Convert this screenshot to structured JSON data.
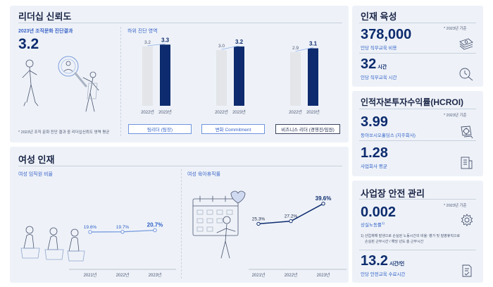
{
  "leadership": {
    "title": "리더십 신뢰도",
    "survey_label": "2023년 조직문화 진단결과",
    "score": "3.2",
    "footnote": "* 2023년 조직 문화 진단 결과 중 리더십신뢰도 영역 평균",
    "lower_title": "하위 진단 영역"
  },
  "women": {
    "title": "여성 인재",
    "ratio_label": "여성 임직원 비율",
    "leave_label": "여성 육아휴직률"
  },
  "talent": {
    "title": "인재 육성",
    "basis": "* 2023년 기준",
    "cost_value": "378,000",
    "cost_label": "인당 직무교육 비용",
    "hours_value": "32",
    "hours_unit": "시간",
    "hours_label": "인당 직무교육 시간"
  },
  "hcroi": {
    "title": "인적자본투자수익률(HCROI)",
    "basis": "* 2023년 기준",
    "value1": "3.99",
    "label1": "동아쏘시오홀딩스 (지주회사)",
    "value2": "1.28",
    "label2": "사업회사 평균"
  },
  "safety": {
    "title": "사업장 안전 관리",
    "basis": "* 2023년 기준",
    "ltir_value": "0.002",
    "ltir_label": "상실노동률",
    "ltir_sup": "1)",
    "note_line1": "1) 산업재해 발생으로 손실된 노동시간의 비율: 병가 및 질병휴직으로",
    "note_line2": "손실된 근무시간 / 해당 년도 총 근무시간",
    "hours_value": "13.2",
    "hours_unit": "시간/인",
    "hours_label": "인당 안전교육 수료시간"
  },
  "colors": {
    "navy": "#0d2b6e",
    "blue": "#2f5fc8",
    "grey_bar": "#e3e5e8",
    "panel": "#eef2f8"
  },
  "chart_data": [
    {
      "type": "bar",
      "group": "팀리더 (팀장)",
      "categories": [
        "2022년",
        "2023년"
      ],
      "values": [
        3.2,
        3.3
      ],
      "value_labels": [
        "3.2",
        "3.3"
      ]
    },
    {
      "type": "bar",
      "group": "변화 Commitment",
      "categories": [
        "2022년",
        "2023년"
      ],
      "values": [
        3.0,
        3.2
      ],
      "value_labels": [
        "3.0",
        "3.2"
      ]
    },
    {
      "type": "bar",
      "group": "비즈니스 리더 (경영진/임원)",
      "categories": [
        "2022년",
        "2023년"
      ],
      "values": [
        2.9,
        3.1
      ],
      "value_labels": [
        "2.9",
        "3.1"
      ]
    },
    {
      "type": "line",
      "x": [
        "2021년",
        "2022년",
        "2023년"
      ],
      "values": [
        19.6,
        19.7,
        20.7
      ],
      "value_labels": [
        "19.6%",
        "19.7%",
        "20.7%"
      ]
    },
    {
      "type": "line",
      "x": [
        "2021년",
        "2022년",
        "2023년"
      ],
      "values": [
        25.3,
        27.2,
        39.6
      ],
      "value_labels": [
        "25.3%",
        "27.2%",
        "39.6%"
      ]
    }
  ]
}
